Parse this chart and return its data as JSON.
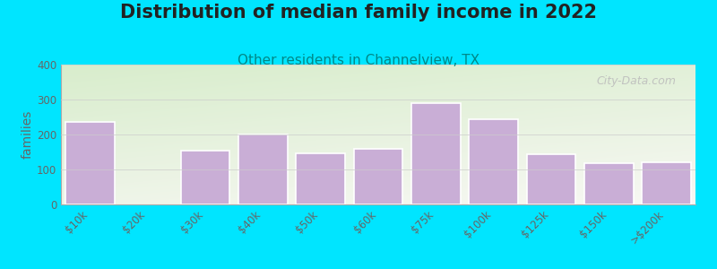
{
  "title": "Distribution of median family income in 2022",
  "subtitle": "Other residents in Channelview, TX",
  "ylabel": "families",
  "categories": [
    "$10k",
    "$20k",
    "$30k",
    "$40k",
    "$50k",
    "$60k",
    "$75k",
    "$100k",
    "$125k",
    "$150k",
    ">$200k"
  ],
  "values": [
    235,
    0,
    155,
    200,
    145,
    160,
    290,
    243,
    143,
    118,
    120
  ],
  "bar_color": "#c9aed6",
  "bar_edge_color": "#ffffff",
  "background_color": "#00e5ff",
  "plot_bg_top_left": "#d8edcc",
  "plot_bg_bottom_right": "#f8f8f4",
  "title_fontsize": 15,
  "subtitle_fontsize": 11,
  "title_color": "#222222",
  "subtitle_color": "#008888",
  "ylabel_fontsize": 10,
  "tick_fontsize": 8.5,
  "tick_color": "#666666",
  "ylim": [
    0,
    400
  ],
  "yticks": [
    0,
    100,
    200,
    300,
    400
  ],
  "watermark": "City-Data.com"
}
